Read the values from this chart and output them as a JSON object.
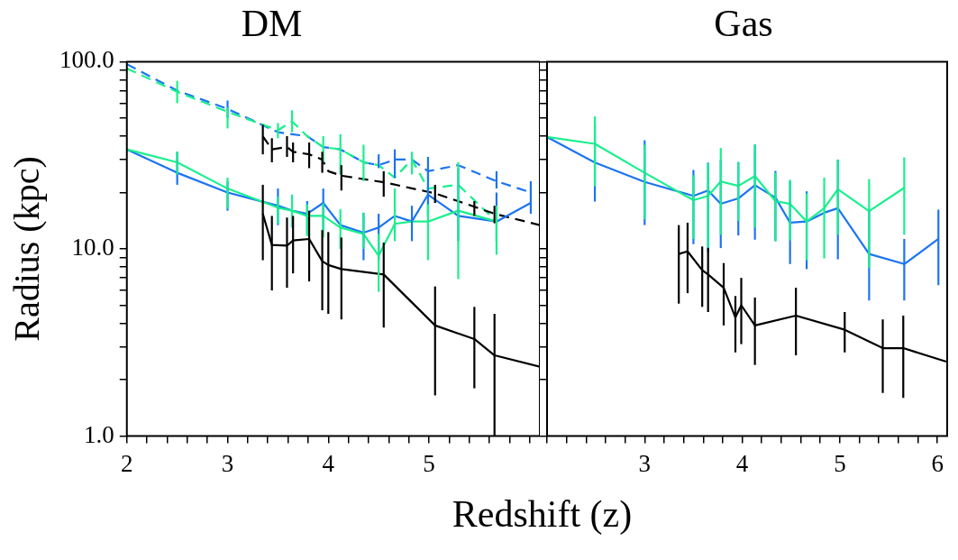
{
  "chart_data": [
    {
      "type": "line",
      "title": "DM",
      "xlabel": "Redshift (z)",
      "ylabel": "Radius (kpc)",
      "log": "y",
      "grid": false,
      "legend": false,
      "marker": "none",
      "xlim": [
        2,
        6.1
      ],
      "ylim": [
        1,
        100
      ],
      "xticks": [
        2,
        {
          "value": 2.2,
          "label": null
        },
        {
          "value": 2.4,
          "label": null
        },
        {
          "value": 2.6,
          "label": null
        },
        {
          "value": 2.8,
          "label": null
        },
        3,
        {
          "value": 3.2,
          "label": null
        },
        {
          "value": 3.4,
          "label": null
        },
        {
          "value": 3.6,
          "label": null
        },
        {
          "value": 3.8,
          "label": null
        },
        4,
        {
          "value": 4.2,
          "label": null
        },
        {
          "value": 4.4,
          "label": null
        },
        {
          "value": 4.6,
          "label": null
        },
        {
          "value": 4.8,
          "label": null
        },
        5,
        {
          "value": 5.2,
          "label": null
        },
        {
          "value": 5.4,
          "label": null
        },
        {
          "value": 5.6,
          "label": null
        },
        {
          "value": 5.8,
          "label": null
        },
        {
          "value": 6,
          "label": null
        }
      ],
      "yticks": [
        {
          "value": 1,
          "label": "1.0"
        },
        {
          "value": 2,
          "label": null
        },
        {
          "value": 3,
          "label": null
        },
        {
          "value": 4,
          "label": null
        },
        {
          "value": 5,
          "label": null
        },
        {
          "value": 6,
          "label": null
        },
        {
          "value": 7,
          "label": null
        },
        {
          "value": 8,
          "label": null
        },
        {
          "value": 9,
          "label": null
        },
        {
          "value": 10,
          "label": "10.0"
        },
        {
          "value": 20,
          "label": null
        },
        {
          "value": 30,
          "label": null
        },
        {
          "value": 40,
          "label": null
        },
        {
          "value": 50,
          "label": null
        },
        {
          "value": 60,
          "label": null
        },
        {
          "value": 70,
          "label": null
        },
        {
          "value": 80,
          "label": null
        },
        {
          "value": 90,
          "label": null
        },
        {
          "value": 100,
          "label": "100.0"
        }
      ],
      "series": [
        {
          "color": "#1c74f2",
          "line_style": "dashed",
          "x": [
            2.0,
            2.5,
            3.0,
            3.5,
            3.64,
            3.79,
            3.95,
            4.12,
            4.35,
            4.5,
            4.66,
            4.83,
            4.99,
            5.29,
            5.67,
            6.01
          ],
          "values": [
            97,
            70,
            56,
            42,
            41,
            40,
            35,
            34,
            29,
            28,
            30,
            30,
            26,
            28,
            23,
            20
          ],
          "errors": [
            null,
            null,
            [
              50,
              62
            ],
            null,
            null,
            null,
            null,
            null,
            null,
            [
              27,
              32
            ],
            [
              24,
              34
            ],
            null,
            null,
            null,
            [
              21,
              26
            ],
            null
          ]
        },
        {
          "color": "#19f08c",
          "line_style": "dashed",
          "x": [
            2.0,
            2.5,
            3.0,
            3.5,
            3.64,
            3.79,
            3.95,
            4.12,
            4.35,
            4.5,
            4.66,
            4.83,
            4.99,
            5.29,
            5.67
          ],
          "values": [
            92,
            69,
            54,
            43,
            48,
            40,
            35,
            34,
            29,
            28,
            24,
            30,
            21,
            22,
            14
          ],
          "errors": [
            null,
            [
              60,
              79
            ],
            [
              44,
              57
            ],
            [
              39,
              47
            ],
            [
              42,
              55
            ],
            null,
            [
              29,
              40
            ],
            [
              25,
              41
            ],
            [
              23,
              36
            ],
            null,
            null,
            [
              25,
              33
            ],
            [
              15,
              27
            ],
            null,
            null
          ]
        },
        {
          "color": "#000000",
          "line_style": "dashed",
          "x": [
            3.35,
            3.44,
            3.59,
            3.65,
            3.81,
            3.94,
            4.0,
            4.13,
            4.55,
            5.06,
            5.45,
            5.65,
            6.1
          ],
          "values": [
            40,
            34,
            35,
            33,
            32,
            30,
            26,
            24.6,
            22.7,
            19.8,
            16.8,
            15.4,
            13.4
          ],
          "errors": [
            [
              32,
              46
            ],
            [
              29,
              39
            ],
            [
              31,
              40
            ],
            [
              29,
              37
            ],
            [
              27,
              37
            ],
            [
              25.5,
              33
            ],
            null,
            [
              20.5,
              28
            ],
            [
              19,
              26
            ],
            [
              17.6,
              22
            ],
            [
              15,
              18
            ],
            [
              13.7,
              17
            ],
            null
          ]
        },
        {
          "color": "#1c74f2",
          "line_style": "solid",
          "x": [
            2.0,
            2.5,
            3.0,
            3.5,
            3.64,
            3.79,
            3.95,
            4.12,
            4.35,
            4.5,
            4.66,
            4.83,
            4.99,
            5.29,
            5.67,
            6.01
          ],
          "values": [
            34,
            25.5,
            20,
            17,
            16,
            15.4,
            17.6,
            13.4,
            12.2,
            13,
            15,
            14,
            19.5,
            15,
            14,
            17.6
          ],
          "errors": [
            null,
            [
              22,
              33
            ],
            [
              16,
              23
            ],
            [
              13.4,
              21
            ],
            null,
            [
              12,
              18
            ],
            [
              12.6,
              21
            ],
            null,
            [
              8.7,
              15.6
            ],
            [
              8.7,
              15.4
            ],
            null,
            [
              11,
              17
            ],
            [
              15,
              31
            ],
            [
              11,
              27
            ],
            [
              11,
              20
            ],
            [
              15.4,
              23
            ]
          ]
        },
        {
          "color": "#19f08c",
          "line_style": "solid",
          "x": [
            2.0,
            2.5,
            3.0,
            3.5,
            3.64,
            3.79,
            3.95,
            4.12,
            4.35,
            4.5,
            4.66,
            4.83,
            4.99,
            5.29,
            5.67
          ],
          "values": [
            34,
            29,
            21,
            16.6,
            16,
            15,
            15,
            13,
            12,
            9.2,
            13.6,
            14,
            14,
            16,
            14
          ],
          "errors": [
            null,
            [
              25,
              33
            ],
            [
              16.4,
              24
            ],
            [
              13.6,
              19
            ],
            [
              13,
              19.5
            ],
            [
              11.7,
              17.3
            ],
            [
              11.5,
              17.5
            ],
            [
              10,
              16.3
            ],
            [
              10,
              15.6
            ],
            [
              5.9,
              12
            ],
            [
              11,
              21
            ],
            null,
            [
              8.7,
              17.3
            ],
            [
              6.9,
              29
            ],
            [
              9.3,
              17
            ]
          ]
        },
        {
          "color": "#000000",
          "line_style": "solid",
          "x": [
            3.35,
            3.44,
            3.59,
            3.65,
            3.81,
            3.94,
            4.0,
            4.13,
            4.55,
            5.06,
            5.45,
            5.65,
            6.1
          ],
          "values": [
            15.4,
            10.5,
            10.4,
            11.1,
            11.3,
            8.6,
            8.2,
            7.8,
            7.3,
            3.9,
            3.3,
            2.7,
            2.35
          ],
          "errors": [
            [
              8.7,
              22
            ],
            [
              6,
              15
            ],
            [
              6.2,
              14.7
            ],
            [
              7.4,
              15
            ],
            [
              6.7,
              16
            ],
            [
              4.7,
              12.6
            ],
            [
              4.5,
              12.3
            ],
            [
              4.2,
              11.5
            ],
            [
              3.8,
              10.8
            ],
            [
              1.65,
              6.3
            ],
            [
              1.8,
              4.9
            ],
            [
              1,
              4.5
            ],
            null
          ]
        }
      ]
    },
    {
      "type": "line",
      "title": "Gas",
      "log": "y",
      "grid": false,
      "legend": false,
      "marker": "none",
      "tick_labels": "x",
      "xlim": [
        2,
        6.1
      ],
      "ylim": [
        1,
        100
      ],
      "xticks": [
        {
          "value": 2,
          "label": null
        },
        {
          "value": 2.2,
          "label": null
        },
        {
          "value": 2.4,
          "label": null
        },
        {
          "value": 2.6,
          "label": null
        },
        {
          "value": 2.8,
          "label": null
        },
        3,
        {
          "value": 3.2,
          "label": null
        },
        {
          "value": 3.4,
          "label": null
        },
        {
          "value": 3.6,
          "label": null
        },
        {
          "value": 3.8,
          "label": null
        },
        4,
        {
          "value": 4.2,
          "label": null
        },
        {
          "value": 4.4,
          "label": null
        },
        {
          "value": 4.6,
          "label": null
        },
        {
          "value": 4.8,
          "label": null
        },
        5,
        {
          "value": 5.2,
          "label": null
        },
        {
          "value": 5.4,
          "label": null
        },
        {
          "value": 5.6,
          "label": null
        },
        {
          "value": 5.8,
          "label": null
        },
        6
      ],
      "yticks": [
        1,
        2,
        3,
        4,
        5,
        6,
        7,
        8,
        9,
        10,
        20,
        30,
        40,
        50,
        60,
        70,
        80,
        90,
        100
      ],
      "series": [
        {
          "color": "#1c74f2",
          "line_style": "solid",
          "x": [
            2.0,
            2.49,
            3.0,
            3.5,
            3.65,
            3.78,
            3.96,
            4.13,
            4.34,
            4.49,
            4.66,
            4.84,
            4.98,
            5.3,
            5.66,
            6.01
          ],
          "values": [
            39.6,
            28.9,
            22.8,
            19.2,
            20.5,
            17.4,
            18.6,
            21.9,
            18.8,
            13.8,
            14,
            15.6,
            16.5,
            9.4,
            8.3,
            11.3
          ],
          "errors": [
            null,
            [
              17.9,
              46
            ],
            [
              13.4,
              38
            ],
            [
              10.6,
              26.4
            ],
            [
              9.6,
              28.9
            ],
            [
              10.1,
              30
            ],
            [
              11.8,
              29
            ],
            [
              11.2,
              36
            ],
            [
              11,
              26.1
            ],
            [
              8.3,
              23
            ],
            [
              7.8,
              20.3
            ],
            null,
            [
              8.8,
              30
            ],
            [
              5.3,
              16
            ],
            [
              5.3,
              11.3
            ],
            [
              6.4,
              16.2
            ]
          ]
        },
        {
          "color": "#19f08c",
          "line_style": "solid",
          "x": [
            2.0,
            2.49,
            3.0,
            3.5,
            3.65,
            3.78,
            3.96,
            4.13,
            4.34,
            4.49,
            4.66,
            4.84,
            4.98,
            5.3,
            5.66
          ],
          "values": [
            39.6,
            36.4,
            25.5,
            18.2,
            19.2,
            22.9,
            21.7,
            24.5,
            18,
            17.4,
            14,
            16.5,
            20.8,
            15.9,
            21.2
          ],
          "errors": [
            null,
            [
              21.6,
              51
            ],
            [
              14.4,
              36
            ],
            [
              11.3,
              24.7
            ],
            [
              10.2,
              28.7
            ],
            [
              11.9,
              34.6
            ],
            [
              14.1,
              29.2
            ],
            [
              13,
              36.2
            ],
            [
              11,
              25.5
            ],
            [
              11.1,
              23.4
            ],
            [
              8.7,
              19.8
            ],
            [
              8.9,
              24
            ],
            [
              11.9,
              29.9
            ],
            [
              7.9,
              23.6
            ],
            [
              11.9,
              30.8
            ]
          ]
        },
        {
          "color": "#000000",
          "line_style": "solid",
          "x": [
            3.35,
            3.44,
            3.59,
            3.65,
            3.81,
            3.93,
            3.99,
            4.13,
            4.55,
            5.05,
            5.44,
            5.65,
            6.09
          ],
          "values": [
            9.4,
            9.7,
            7.7,
            7.3,
            6.2,
            4.3,
            5.0,
            3.9,
            4.4,
            3.7,
            2.95,
            2.95,
            2.5
          ],
          "errors": [
            [
              5.1,
              13.4
            ],
            [
              5.8,
              13.8
            ],
            [
              4.9,
              10.3
            ],
            [
              4.6,
              10.1
            ],
            [
              3.9,
              8.4
            ],
            [
              2.8,
              5.6
            ],
            [
              3.1,
              7
            ],
            [
              2.4,
              5.5
            ],
            [
              2.7,
              6.2
            ],
            [
              2.8,
              4.6
            ],
            [
              1.7,
              4.2
            ],
            [
              1.6,
              4.4
            ],
            null
          ]
        }
      ]
    }
  ]
}
